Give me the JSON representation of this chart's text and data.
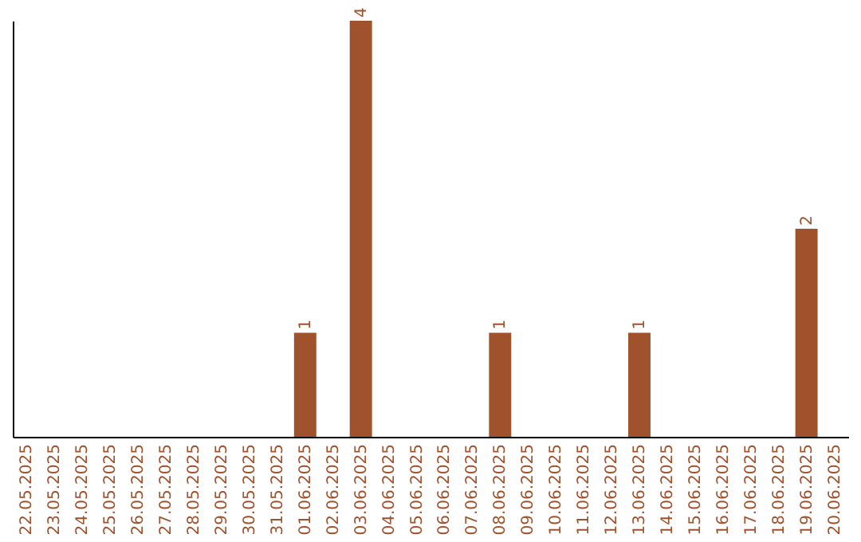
{
  "chart_data": {
    "type": "bar",
    "categories": [
      "22.05.2025",
      "23.05.2025",
      "24.05.2025",
      "25.05.2025",
      "26.05.2025",
      "27.05.2025",
      "28.05.2025",
      "29.05.2025",
      "30.05.2025",
      "31.05.2025",
      "01.06.2025",
      "02.06.2025",
      "03.06.2025",
      "04.06.2025",
      "05.06.2025",
      "06.06.2025",
      "07.06.2025",
      "08.06.2025",
      "09.06.2025",
      "10.06.2025",
      "11.06.2025",
      "12.06.2025",
      "13.06.2025",
      "14.06.2025",
      "15.06.2025",
      "16.06.2025",
      "17.06.2025",
      "18.06.2025",
      "19.06.2025",
      "20.06.2025"
    ],
    "values": [
      0,
      0,
      0,
      0,
      0,
      0,
      0,
      0,
      0,
      0,
      1,
      0,
      4,
      0,
      0,
      0,
      0,
      1,
      0,
      0,
      0,
      0,
      1,
      0,
      0,
      0,
      0,
      0,
      2,
      0
    ],
    "value_labels": [
      null,
      null,
      null,
      null,
      null,
      null,
      null,
      null,
      null,
      null,
      "1",
      null,
      "4",
      null,
      null,
      null,
      null,
      "1",
      null,
      null,
      null,
      null,
      "1",
      null,
      null,
      null,
      null,
      null,
      "2",
      null
    ],
    "color": "#a0522d",
    "tick_labels": "x"
  }
}
